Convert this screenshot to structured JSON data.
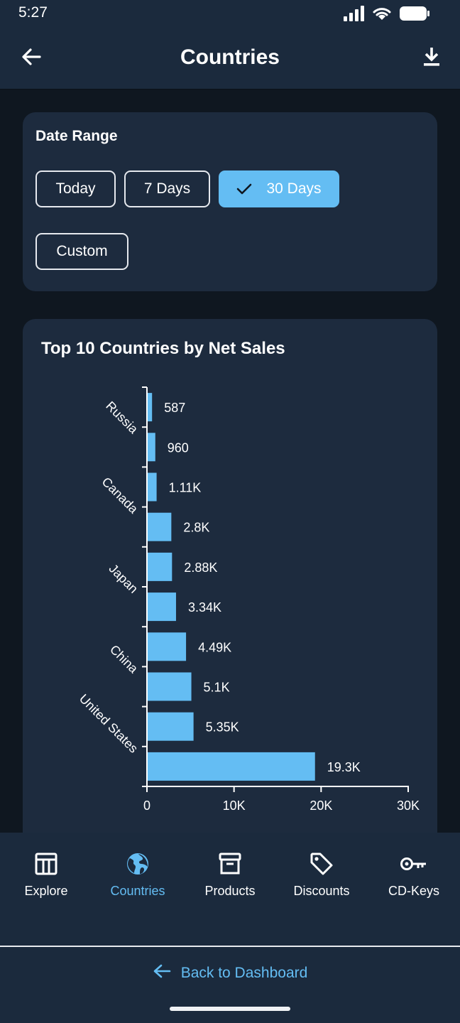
{
  "status_bar": {
    "time": "5:27"
  },
  "app_bar": {
    "title": "Countries"
  },
  "date_range": {
    "title": "Date Range",
    "chips": [
      {
        "label": "Today",
        "selected": false
      },
      {
        "label": "7 Days",
        "selected": false
      },
      {
        "label": "30 Days",
        "selected": true
      },
      {
        "label": "Custom",
        "selected": false
      }
    ]
  },
  "chart_data": {
    "type": "bar",
    "orientation": "horizontal",
    "title": "Top 10 Countries by Net Sales",
    "categories": [
      "",
      "Russia",
      "",
      "Canada",
      "",
      "Japan",
      "",
      "China",
      "",
      "United States"
    ],
    "values": [
      587,
      960,
      1110,
      2800,
      2880,
      3340,
      4490,
      5100,
      5350,
      19300
    ],
    "data_labels": [
      "587",
      "960",
      "1.11K",
      "2.8K",
      "2.88K",
      "3.34K",
      "4.49K",
      "5.1K",
      "5.35K",
      "19.3K"
    ],
    "x_ticks": [
      "0",
      "10K",
      "20K",
      "30K"
    ],
    "xlim": [
      0,
      30000
    ],
    "bar_color": "#64bdf3"
  },
  "bottom_nav": {
    "items": [
      {
        "label": "Explore",
        "icon": "table-icon",
        "active": false
      },
      {
        "label": "Countries",
        "icon": "globe-icon",
        "active": true
      },
      {
        "label": "Products",
        "icon": "archive-icon",
        "active": false
      },
      {
        "label": "Discounts",
        "icon": "tag-icon",
        "active": false
      },
      {
        "label": "CD-Keys",
        "icon": "key-icon",
        "active": false
      }
    ]
  },
  "footer": {
    "back_label": "Back to Dashboard"
  },
  "colors": {
    "accent": "#64bdf3",
    "card": "#1d2b3e",
    "bar": "#1b2a3d",
    "background": "#0f1720"
  }
}
